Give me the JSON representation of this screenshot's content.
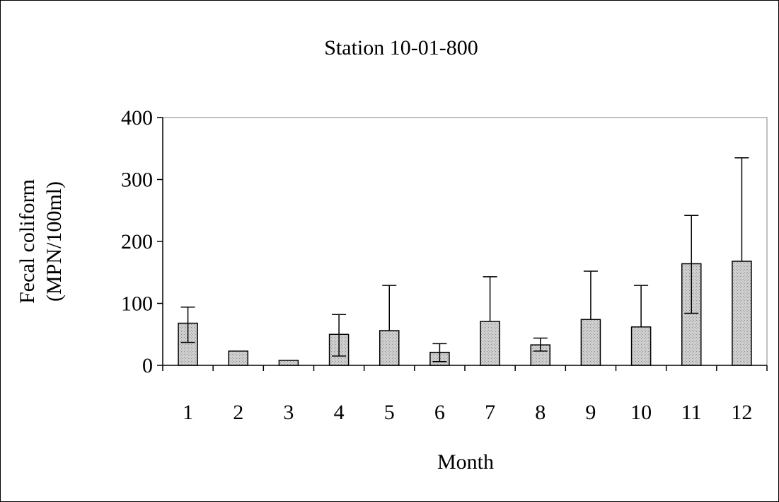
{
  "chart_data": {
    "type": "bar",
    "title": "Station 10-01-800",
    "xlabel": "Month",
    "ylabel_lines": [
      "Fecal coliform",
      "(MPN/100ml)"
    ],
    "categories": [
      "1",
      "2",
      "3",
      "4",
      "5",
      "6",
      "7",
      "8",
      "9",
      "10",
      "11",
      "12"
    ],
    "values": [
      68,
      23,
      8,
      50,
      56,
      21,
      71,
      33,
      74,
      62,
      164,
      168
    ],
    "error_plus": [
      26,
      0,
      0,
      32,
      73,
      14,
      72,
      11,
      78,
      67,
      78,
      167
    ],
    "error_minus": [
      31,
      0,
      0,
      35,
      0,
      15,
      0,
      10,
      0,
      0,
      80,
      0
    ],
    "ylim": [
      0,
      400
    ],
    "yticks": [
      "0",
      "100",
      "200",
      "300",
      "400"
    ],
    "grid": false,
    "legend": "none",
    "colors": {
      "bar_fill": "#c8c8c8",
      "bar_stroke": "#000000",
      "axis": "#000000",
      "plot_border": "#808080",
      "frame": "#000000"
    }
  }
}
